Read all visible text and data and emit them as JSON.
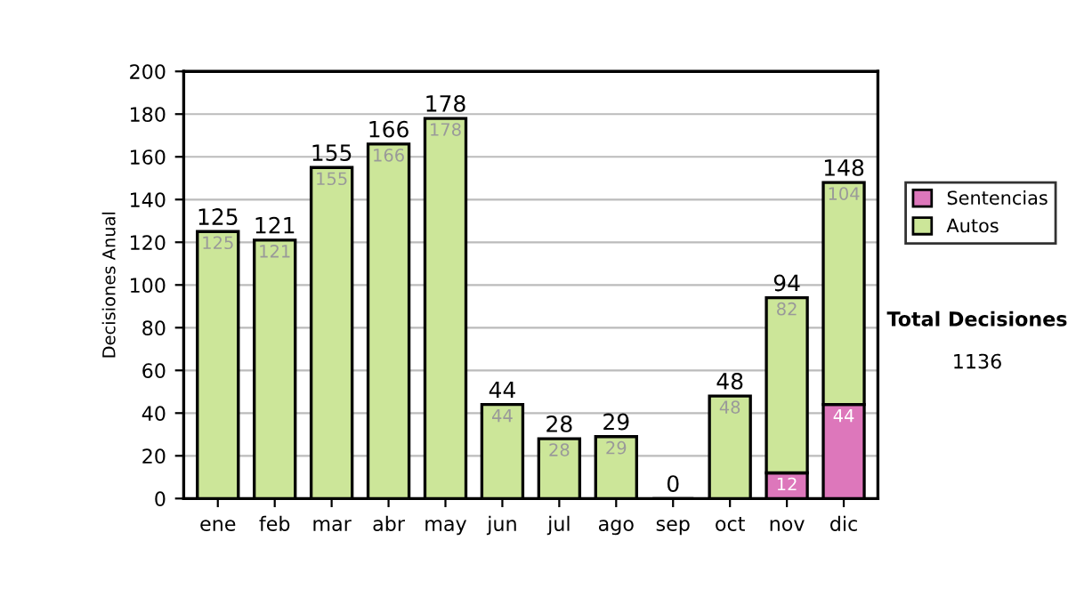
{
  "chart_data": {
    "type": "bar",
    "stacked": true,
    "ylabel": "Decisiones Anual",
    "categories": [
      "ene",
      "feb",
      "mar",
      "abr",
      "may",
      "jun",
      "jul",
      "ago",
      "sep",
      "oct",
      "nov",
      "dic"
    ],
    "series": [
      {
        "name": "Sentencias",
        "color": "#dd77bb",
        "values": [
          null,
          null,
          null,
          null,
          null,
          null,
          null,
          null,
          null,
          null,
          12,
          44
        ],
        "value_labels": [
          null,
          null,
          null,
          null,
          null,
          null,
          null,
          null,
          null,
          null,
          "12",
          "44"
        ]
      },
      {
        "name": "Autos",
        "color": "#cce699",
        "values": [
          125,
          121,
          155,
          166,
          178,
          44,
          28,
          29,
          0,
          48,
          82,
          104
        ],
        "value_labels": [
          "125",
          "121",
          "155",
          "166",
          "178",
          "44",
          "28",
          "29",
          null,
          "48",
          "82",
          "104"
        ]
      }
    ],
    "totals": [
      "125",
      "121",
      "155",
      "166",
      "178",
      "44",
      "28",
      "29",
      "0",
      "48",
      "94",
      "148"
    ],
    "ylim": [
      0,
      200
    ],
    "yticks": [
      0,
      20,
      40,
      60,
      80,
      100,
      120,
      140,
      160,
      180,
      200
    ],
    "grid": "y",
    "legend": "right",
    "annotations": [
      "Total Decisiones",
      "1136"
    ]
  }
}
